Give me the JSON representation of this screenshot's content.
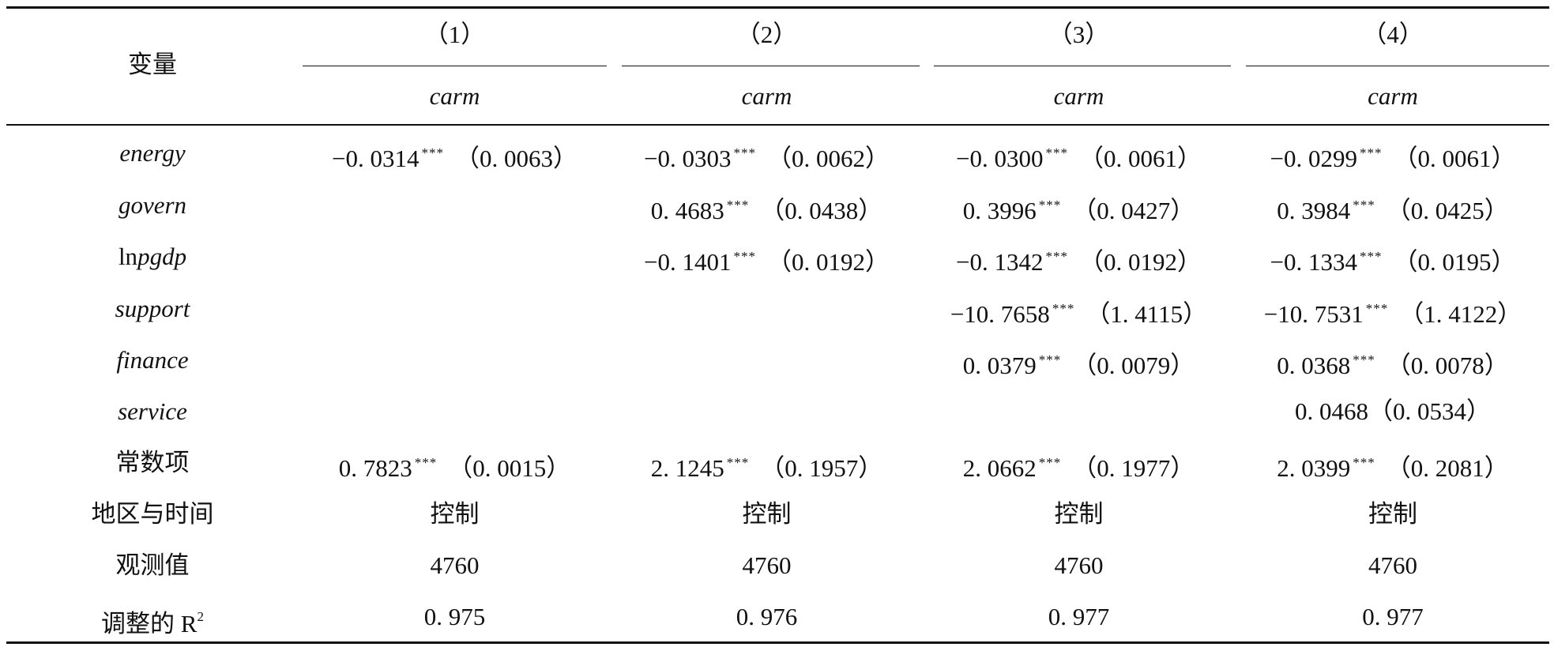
{
  "table": {
    "stub_header": "变量",
    "columns": [
      {
        "number": "（1）",
        "dep_var": "carm"
      },
      {
        "number": "（2）",
        "dep_var": "carm"
      },
      {
        "number": "（3）",
        "dep_var": "carm"
      },
      {
        "number": "（4）",
        "dep_var": "carm"
      }
    ],
    "rows": [
      {
        "label": "energy",
        "cells": [
          {
            "coef": "−0. 0314",
            "stars": "***",
            "se": "（0. 0063）"
          },
          {
            "coef": "−0. 0303",
            "stars": "***",
            "se": "（0. 0062）"
          },
          {
            "coef": "−0. 0300",
            "stars": "***",
            "se": "（0. 0061）"
          },
          {
            "coef": "−0. 0299",
            "stars": "***",
            "se": "（0. 0061）"
          }
        ]
      },
      {
        "label": "govern",
        "cells": [
          {
            "coef": "",
            "stars": "",
            "se": ""
          },
          {
            "coef": "0. 4683",
            "stars": "***",
            "se": "（0. 0438）"
          },
          {
            "coef": "0. 3996",
            "stars": "***",
            "se": "（0. 0427）"
          },
          {
            "coef": "0. 3984",
            "stars": "***",
            "se": "（0. 0425）"
          }
        ]
      },
      {
        "label_prefix": "ln",
        "label": "pgdp",
        "cells": [
          {
            "coef": "",
            "stars": "",
            "se": ""
          },
          {
            "coef": "−0. 1401",
            "stars": "***",
            "se": "（0. 0192）"
          },
          {
            "coef": "−0. 1342",
            "stars": "***",
            "se": "（0. 0192）"
          },
          {
            "coef": "−0. 1334",
            "stars": "***",
            "se": "（0. 0195）"
          }
        ]
      },
      {
        "label": "support",
        "cells": [
          {
            "coef": "",
            "stars": "",
            "se": ""
          },
          {
            "coef": "",
            "stars": "",
            "se": ""
          },
          {
            "coef": "−10. 7658",
            "stars": "***",
            "se": "（1. 4115）"
          },
          {
            "coef": "−10. 7531",
            "stars": "***",
            "se": "（1. 4122）"
          }
        ]
      },
      {
        "label": "finance",
        "cells": [
          {
            "coef": "",
            "stars": "",
            "se": ""
          },
          {
            "coef": "",
            "stars": "",
            "se": ""
          },
          {
            "coef": "0. 0379",
            "stars": "***",
            "se": "（0. 0079）"
          },
          {
            "coef": "0. 0368",
            "stars": "***",
            "se": "（0. 0078）"
          }
        ]
      },
      {
        "label": "service",
        "cells": [
          {
            "coef": "",
            "stars": "",
            "se": ""
          },
          {
            "coef": "",
            "stars": "",
            "se": ""
          },
          {
            "coef": "",
            "stars": "",
            "se": ""
          },
          {
            "coef": "0. 0468",
            "stars": "",
            "se": "（0. 0534）"
          }
        ]
      },
      {
        "label": "常数项",
        "cells": [
          {
            "coef": "0. 7823",
            "stars": "***",
            "se": "（0. 0015）"
          },
          {
            "coef": "2. 1245",
            "stars": "***",
            "se": "（0. 1957）"
          },
          {
            "coef": "2. 0662",
            "stars": "***",
            "se": "（0. 1977）"
          },
          {
            "coef": "2. 0399",
            "stars": "***",
            "se": "（0. 2081）"
          }
        ]
      }
    ],
    "controls": {
      "label": "地区与时间",
      "values": [
        "控制",
        "控制",
        "控制",
        "控制"
      ]
    },
    "observations": {
      "label": "观测值",
      "values": [
        "4760",
        "4760",
        "4760",
        "4760"
      ]
    },
    "adj_r2": {
      "label": "调整的 R",
      "sup": "2",
      "values": [
        "0. 975",
        "0. 976",
        "0. 977",
        "0. 977"
      ]
    }
  }
}
